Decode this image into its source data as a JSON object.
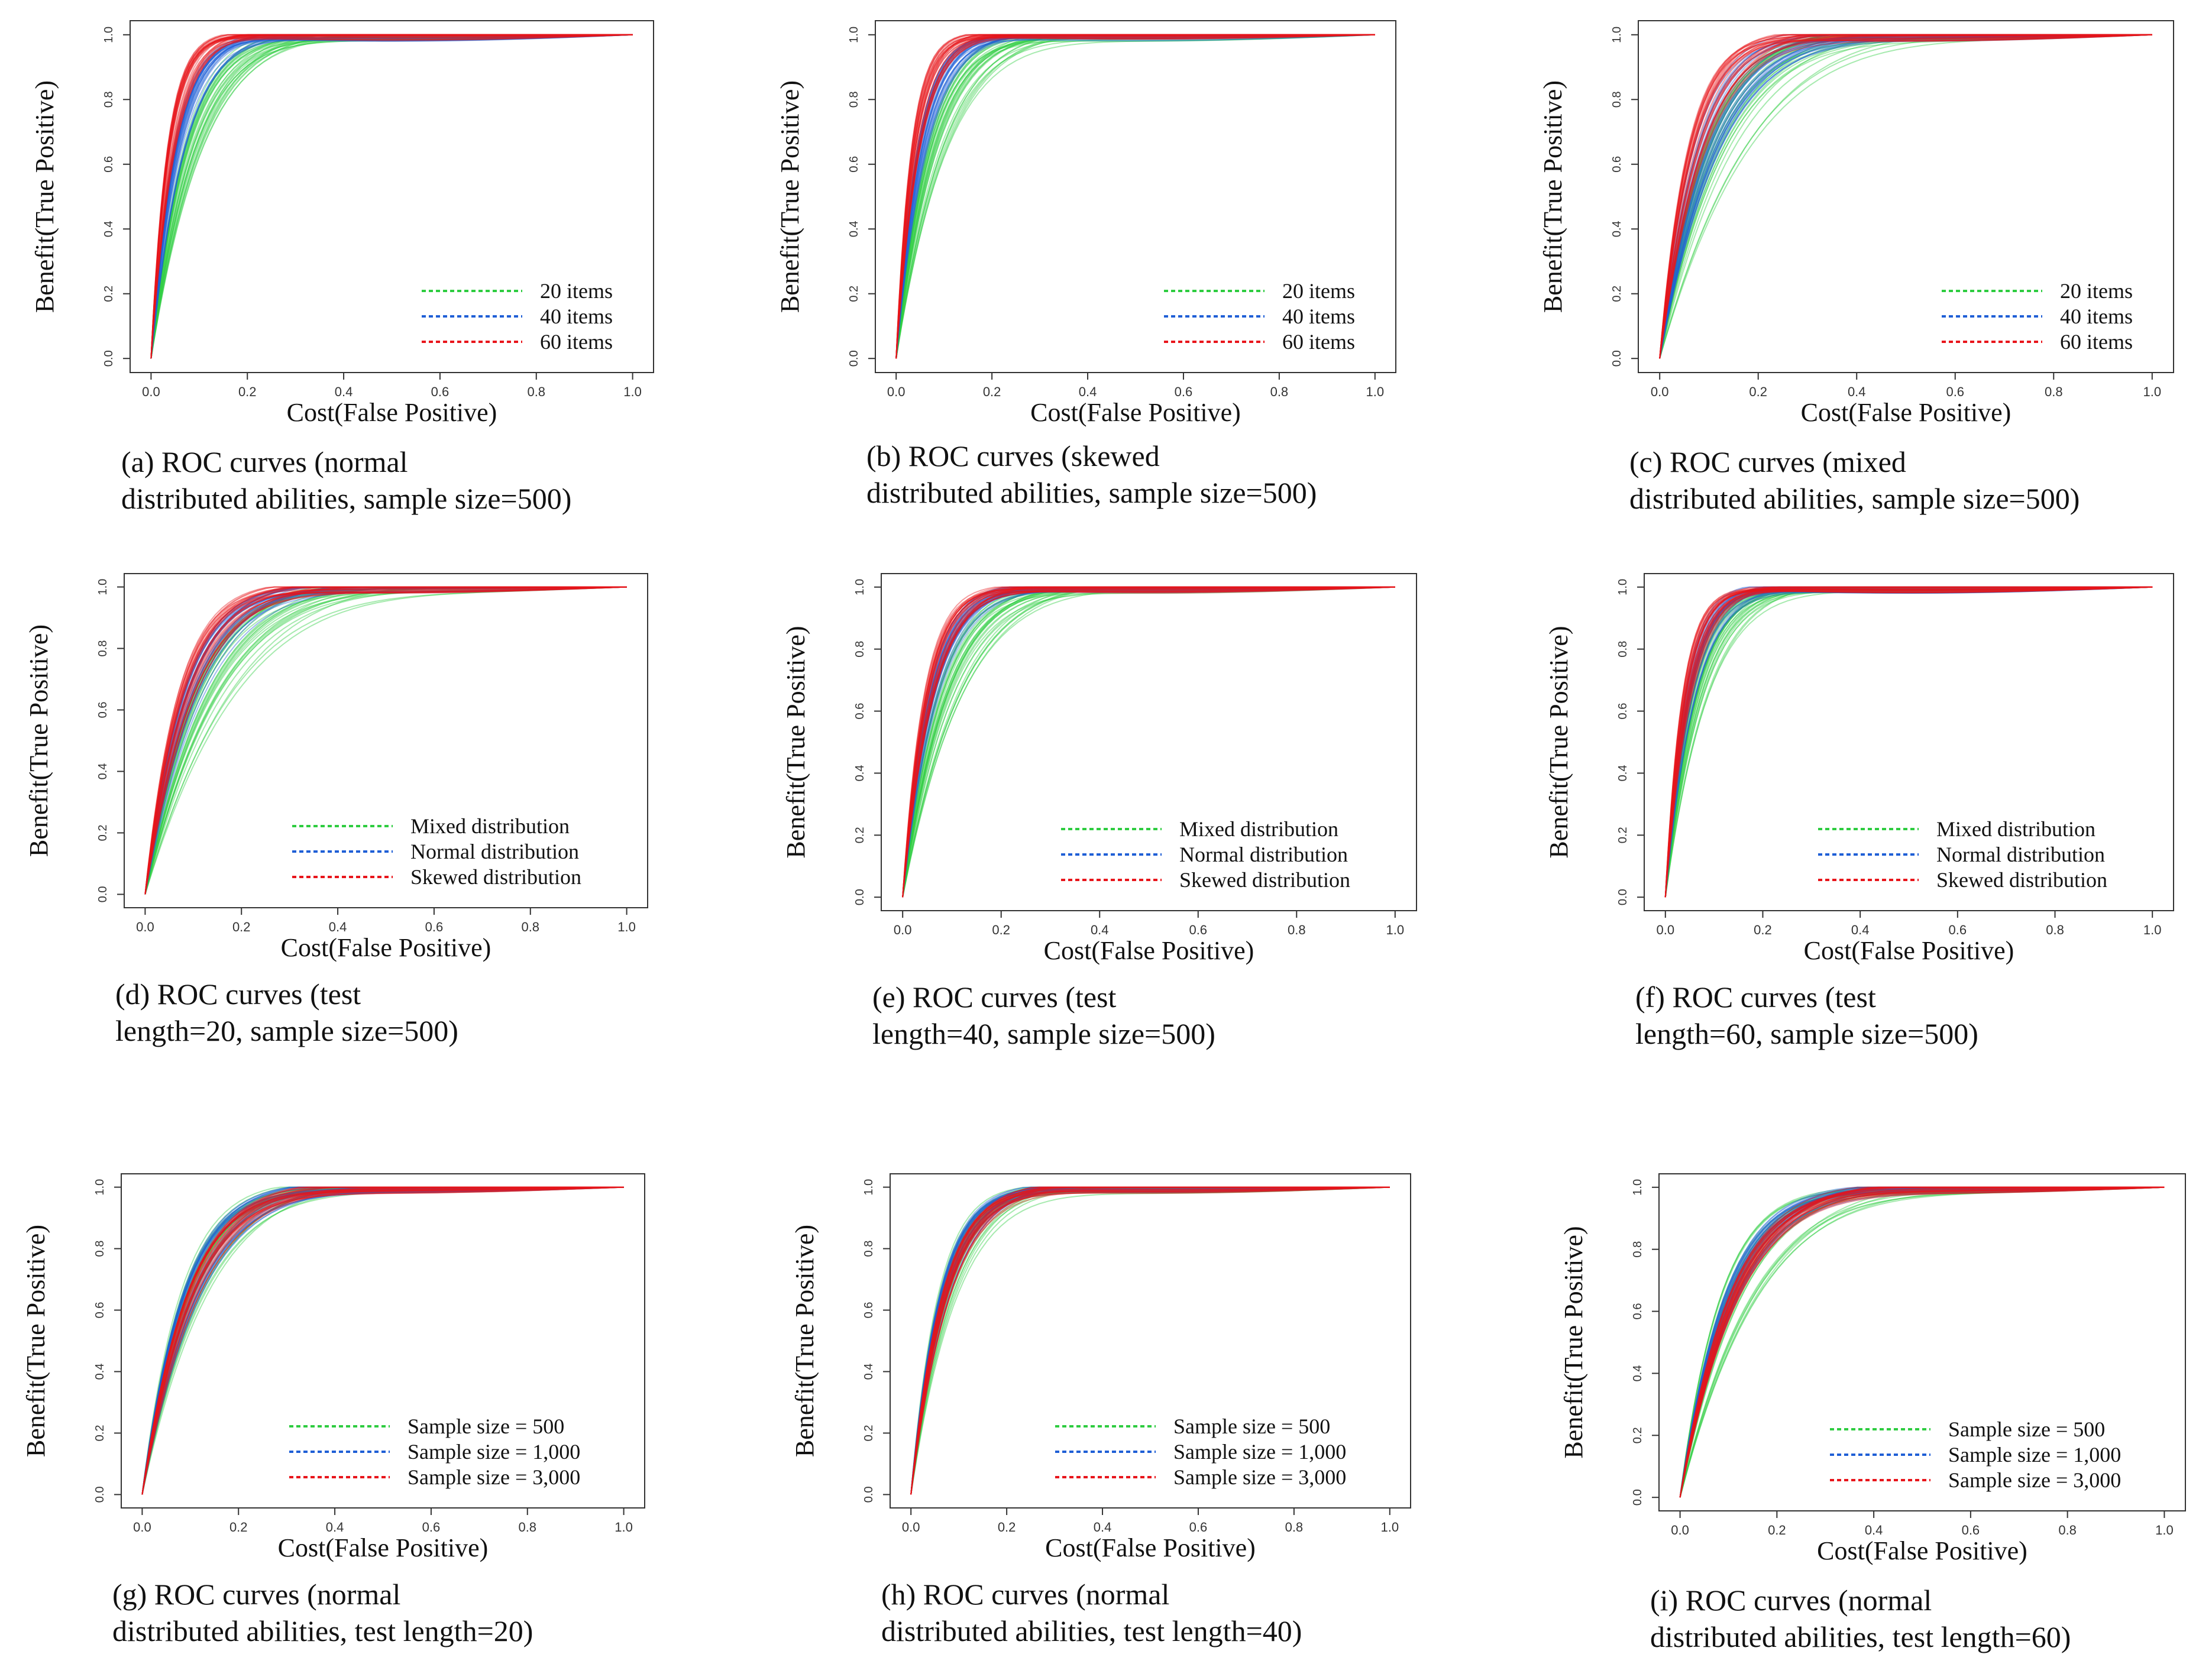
{
  "chart_data": [
    {
      "id": "a",
      "type": "line",
      "group": "test_length",
      "title": "(a) ROC curves (normal distributed abilities, sample size=500)",
      "caption_lines": [
        "(a) ROC curves (normal",
        "distributed abilities, sample size=500)"
      ],
      "xlabel": "Cost(False Positive)",
      "ylabel": "Benefit(True Positive)",
      "xlim": [
        0,
        1
      ],
      "ylim": [
        0,
        1
      ],
      "xticks": [
        "0.0",
        "0.2",
        "0.4",
        "0.6",
        "0.8",
        "1.0"
      ],
      "yticks": [
        "0.0",
        "0.2",
        "0.4",
        "0.6",
        "0.8",
        "1.0"
      ],
      "legend_position": "bottom-right",
      "series": [
        {
          "name": "20 items",
          "color": "#2ecc40",
          "steepness": [
            9,
            15
          ],
          "count": 30
        },
        {
          "name": "40 items",
          "color": "#1f5fd6",
          "steepness": [
            14,
            22
          ],
          "count": 30
        },
        {
          "name": "60 items",
          "color": "#e8151b",
          "steepness": [
            20,
            30
          ],
          "count": 30
        }
      ]
    },
    {
      "id": "b",
      "type": "line",
      "group": "test_length",
      "title": "(b) ROC curves (skewed distributed abilities, sample size=500)",
      "caption_lines": [
        "(b) ROC curves (skewed",
        "distributed abilities, sample size=500)"
      ],
      "xlabel": "Cost(False Positive)",
      "ylabel": "Benefit(True Positive)",
      "xlim": [
        0,
        1
      ],
      "ylim": [
        0,
        1
      ],
      "xticks": [
        "0.0",
        "0.2",
        "0.4",
        "0.6",
        "0.8",
        "1.0"
      ],
      "yticks": [
        "0.0",
        "0.2",
        "0.4",
        "0.6",
        "0.8",
        "1.0"
      ],
      "legend_position": "bottom-right",
      "series": [
        {
          "name": "20 items",
          "color": "#2ecc40",
          "steepness": [
            9,
            16
          ],
          "count": 30
        },
        {
          "name": "40 items",
          "color": "#1f5fd6",
          "steepness": [
            14,
            24
          ],
          "count": 30
        },
        {
          "name": "60 items",
          "color": "#e8151b",
          "steepness": [
            20,
            32
          ],
          "count": 30
        }
      ]
    },
    {
      "id": "c",
      "type": "line",
      "group": "test_length",
      "title": "(c) ROC curves (mixed distributed abilities, sample size=500)",
      "caption_lines": [
        "(c) ROC curves (mixed",
        "distributed abilities, sample size=500)"
      ],
      "xlabel": "Cost(False Positive)",
      "ylabel": "Benefit(True Positive)",
      "xlim": [
        0,
        1
      ],
      "ylim": [
        0,
        1
      ],
      "xticks": [
        "0.0",
        "0.2",
        "0.4",
        "0.6",
        "0.8",
        "1.0"
      ],
      "yticks": [
        "0.0",
        "0.2",
        "0.4",
        "0.6",
        "0.8",
        "1.0"
      ],
      "legend_position": "bottom-right",
      "series": [
        {
          "name": "20 items",
          "color": "#2ecc40",
          "steepness": [
            5,
            11
          ],
          "count": 30
        },
        {
          "name": "40 items",
          "color": "#1f5fd6",
          "steepness": [
            8,
            15
          ],
          "count": 30
        },
        {
          "name": "60 items",
          "color": "#e8151b",
          "steepness": [
            10,
            18
          ],
          "count": 30
        }
      ]
    },
    {
      "id": "d",
      "type": "line",
      "group": "distribution",
      "title": "(d) ROC curves (test length=20, sample size=500)",
      "caption_lines": [
        "(d) ROC curves (test",
        "length=20, sample size=500)"
      ],
      "xlabel": "Cost(False Positive)",
      "ylabel": "Benefit(True Positive)",
      "xlim": [
        0,
        1
      ],
      "ylim": [
        0,
        1
      ],
      "xticks": [
        "0.0",
        "0.2",
        "0.4",
        "0.6",
        "0.8",
        "1.0"
      ],
      "yticks": [
        "0.0",
        "0.2",
        "0.4",
        "0.6",
        "0.8",
        "1.0"
      ],
      "legend_position": "bottom-right",
      "series": [
        {
          "name": "Mixed distribution",
          "color": "#2ecc40",
          "steepness": [
            5,
            10
          ],
          "count": 30
        },
        {
          "name": "Normal distribution",
          "color": "#1f5fd6",
          "steepness": [
            8,
            13
          ],
          "count": 30
        },
        {
          "name": "Skewed distribution",
          "color": "#e8151b",
          "steepness": [
            9,
            15
          ],
          "count": 30
        }
      ]
    },
    {
      "id": "e",
      "type": "line",
      "group": "distribution",
      "title": "(e) ROC curves (test length=40, sample size=500)",
      "caption_lines": [
        "(e) ROC curves (test",
        "length=40, sample size=500)"
      ],
      "xlabel": "Cost(False Positive)",
      "ylabel": "Benefit(True Positive)",
      "xlim": [
        0,
        1
      ],
      "ylim": [
        0,
        1
      ],
      "xticks": [
        "0.0",
        "0.2",
        "0.4",
        "0.6",
        "0.8",
        "1.0"
      ],
      "yticks": [
        "0.0",
        "0.2",
        "0.4",
        "0.6",
        "0.8",
        "1.0"
      ],
      "legend_position": "bottom-right",
      "series": [
        {
          "name": "Mixed distribution",
          "color": "#2ecc40",
          "steepness": [
            8,
            15
          ],
          "count": 30
        },
        {
          "name": "Normal distribution",
          "color": "#1f5fd6",
          "steepness": [
            13,
            20
          ],
          "count": 30
        },
        {
          "name": "Skewed distribution",
          "color": "#e8151b",
          "steepness": [
            15,
            24
          ],
          "count": 30
        }
      ]
    },
    {
      "id": "f",
      "type": "line",
      "group": "distribution",
      "title": "(f) ROC curves (test length=60, sample size=500)",
      "caption_lines": [
        "(f) ROC curves (test",
        "length=60, sample size=500)"
      ],
      "xlabel": "Cost(False Positive)",
      "ylabel": "Benefit(True Positive)",
      "xlim": [
        0,
        1
      ],
      "ylim": [
        0,
        1
      ],
      "xticks": [
        "0.0",
        "0.2",
        "0.4",
        "0.6",
        "0.8",
        "1.0"
      ],
      "yticks": [
        "0.0",
        "0.2",
        "0.4",
        "0.6",
        "0.8",
        "1.0"
      ],
      "legend_position": "bottom-right",
      "series": [
        {
          "name": "Mixed distribution",
          "color": "#2ecc40",
          "steepness": [
            11,
            20
          ],
          "count": 30
        },
        {
          "name": "Normal distribution",
          "color": "#1f5fd6",
          "steepness": [
            16,
            26
          ],
          "count": 30
        },
        {
          "name": "Skewed distribution",
          "color": "#e8151b",
          "steepness": [
            18,
            30
          ],
          "count": 30
        }
      ]
    },
    {
      "id": "g",
      "type": "line",
      "group": "sample_size",
      "title": "(g) ROC curves (normal distributed abilities, test length=20)",
      "caption_lines": [
        "(g) ROC curves (normal",
        "distributed abilities, test length=20)"
      ],
      "xlabel": "Cost(False Positive)",
      "ylabel": "Benefit(True Positive)",
      "xlim": [
        0,
        1
      ],
      "ylim": [
        0,
        1
      ],
      "xticks": [
        "0.0",
        "0.2",
        "0.4",
        "0.6",
        "0.8",
        "1.0"
      ],
      "yticks": [
        "0.0",
        "0.2",
        "0.4",
        "0.6",
        "0.8",
        "1.0"
      ],
      "legend_position": "bottom-right",
      "series": [
        {
          "name": "Sample size = 500",
          "color": "#2ecc40",
          "steepness": [
            7,
            13
          ],
          "count": 30
        },
        {
          "name": "Sample size = 1,000",
          "color": "#1f5fd6",
          "steepness": [
            8,
            12
          ],
          "count": 30
        },
        {
          "name": "Sample size = 3,000",
          "color": "#e8151b",
          "steepness": [
            8,
            11
          ],
          "count": 30
        }
      ]
    },
    {
      "id": "h",
      "type": "line",
      "group": "sample_size",
      "title": "(h) ROC curves (normal distributed abilities, test length=40)",
      "caption_lines": [
        "(h) ROC curves (normal",
        "distributed abilities, test length=40)"
      ],
      "xlabel": "Cost(False Positive)",
      "ylabel": "Benefit(True Positive)",
      "xlim": [
        0,
        1
      ],
      "ylim": [
        0,
        1
      ],
      "xticks": [
        "0.0",
        "0.2",
        "0.4",
        "0.6",
        "0.8",
        "1.0"
      ],
      "yticks": [
        "0.0",
        "0.2",
        "0.4",
        "0.6",
        "0.8",
        "1.0"
      ],
      "legend_position": "bottom-right",
      "series": [
        {
          "name": "Sample size = 500",
          "color": "#2ecc40",
          "steepness": [
            10,
            18
          ],
          "count": 30
        },
        {
          "name": "Sample size = 1,000",
          "color": "#1f5fd6",
          "steepness": [
            12,
            17
          ],
          "count": 30
        },
        {
          "name": "Sample size = 3,000",
          "color": "#e8151b",
          "steepness": [
            12,
            16
          ],
          "count": 30
        }
      ]
    },
    {
      "id": "i",
      "type": "line",
      "group": "sample_size",
      "title": "(i) ROC curves (normal distributed abilities, test length=60)",
      "caption_lines": [
        "(i) ROC curves (normal",
        "distributed abilities, test length=60)"
      ],
      "xlabel": "Cost(False Positive)",
      "ylabel": "Benefit(True Positive)",
      "xlim": [
        0,
        1
      ],
      "ylim": [
        0,
        1
      ],
      "xticks": [
        "0.0",
        "0.2",
        "0.4",
        "0.6",
        "0.8",
        "1.0"
      ],
      "yticks": [
        "0.0",
        "0.2",
        "0.4",
        "0.6",
        "0.8",
        "1.0"
      ],
      "legend_position": "bottom-right",
      "series": [
        {
          "name": "Sample size = 500",
          "color": "#2ecc40",
          "steepness": [
            6,
            12
          ],
          "count": 30
        },
        {
          "name": "Sample size = 1,000",
          "color": "#1f5fd6",
          "steepness": [
            8,
            11
          ],
          "count": 30
        },
        {
          "name": "Sample size = 3,000",
          "color": "#e8151b",
          "steepness": [
            8,
            10
          ],
          "count": 30
        }
      ]
    }
  ]
}
